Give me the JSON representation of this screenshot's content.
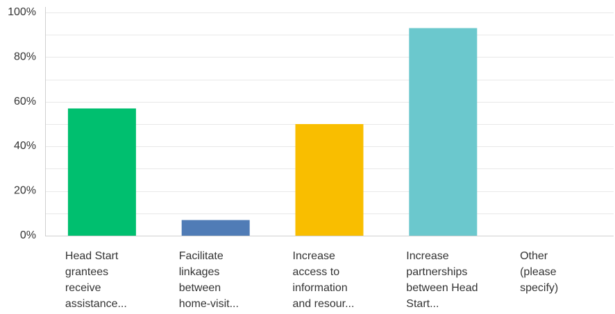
{
  "chart_data": {
    "type": "bar",
    "categories": [
      "Head Start\ngrantees\nreceive\nassistance...",
      "Facilitate\nlinkages\nbetween\nhome-visit...",
      "Increase\naccess to\ninformation\nand resour...",
      "Increase\npartnerships\nbetween Head\nStart...",
      "Other\n(please\nspecify)"
    ],
    "values": [
      57,
      7,
      50,
      93,
      0
    ],
    "colors": [
      "#00BF6F",
      "#507CB6",
      "#F9BE00",
      "#6BC8CD",
      "#FF8B4F"
    ],
    "ylim": [
      0,
      100
    ],
    "yticks": [
      "0%",
      "20%",
      "40%",
      "60%",
      "80%",
      "100%"
    ],
    "ytick_values": [
      0,
      20,
      40,
      60,
      80,
      100
    ],
    "grid": true,
    "gridline_color": "#E8E8E8",
    "title": "",
    "xlabel": "",
    "ylabel": ""
  }
}
